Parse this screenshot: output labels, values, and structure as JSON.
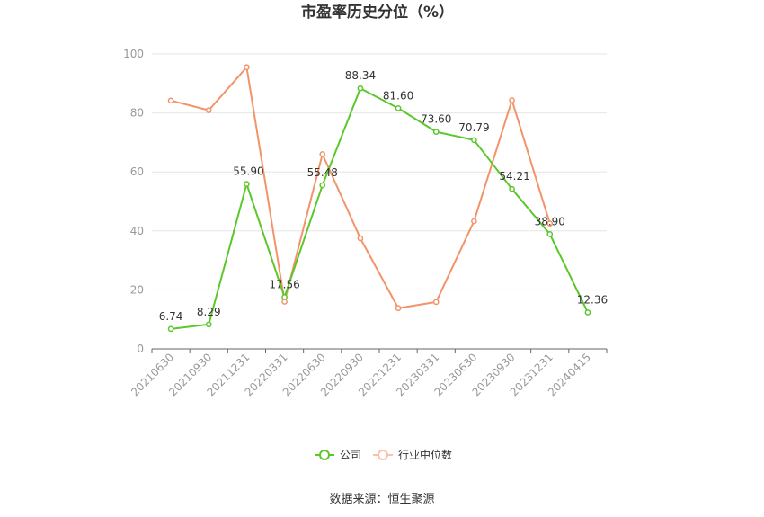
{
  "chart_data": {
    "type": "line",
    "title": "市盈率历史分位（%）",
    "categories": [
      "20210630",
      "20210930",
      "20211231",
      "20220331",
      "20220630",
      "20220930",
      "20221231",
      "20230331",
      "20230630",
      "20230930",
      "20231231",
      "20240415"
    ],
    "ylim": [
      0,
      100
    ],
    "yticks": [
      0,
      20,
      40,
      60,
      80,
      100
    ],
    "grid": true,
    "legend_position": "bottom-center",
    "series": [
      {
        "name": "公司",
        "color": "#5cc72a",
        "values": [
          6.74,
          8.29,
          55.9,
          17.56,
          55.48,
          88.34,
          81.6,
          73.6,
          70.79,
          54.21,
          38.9,
          12.36
        ],
        "labels": [
          "6.74",
          "8.29",
          "55.90",
          "17.56",
          "55.48",
          "88.34",
          "81.60",
          "73.60",
          "70.79",
          "54.21",
          "38.90",
          "12.36"
        ]
      },
      {
        "name": "行业中位数",
        "color": "#f3936a",
        "values": [
          84.2,
          80.9,
          95.5,
          16.0,
          66.0,
          37.5,
          13.8,
          15.9,
          43.3,
          84.3,
          42.5,
          null
        ]
      }
    ]
  },
  "source": "数据来源：恒生聚源"
}
